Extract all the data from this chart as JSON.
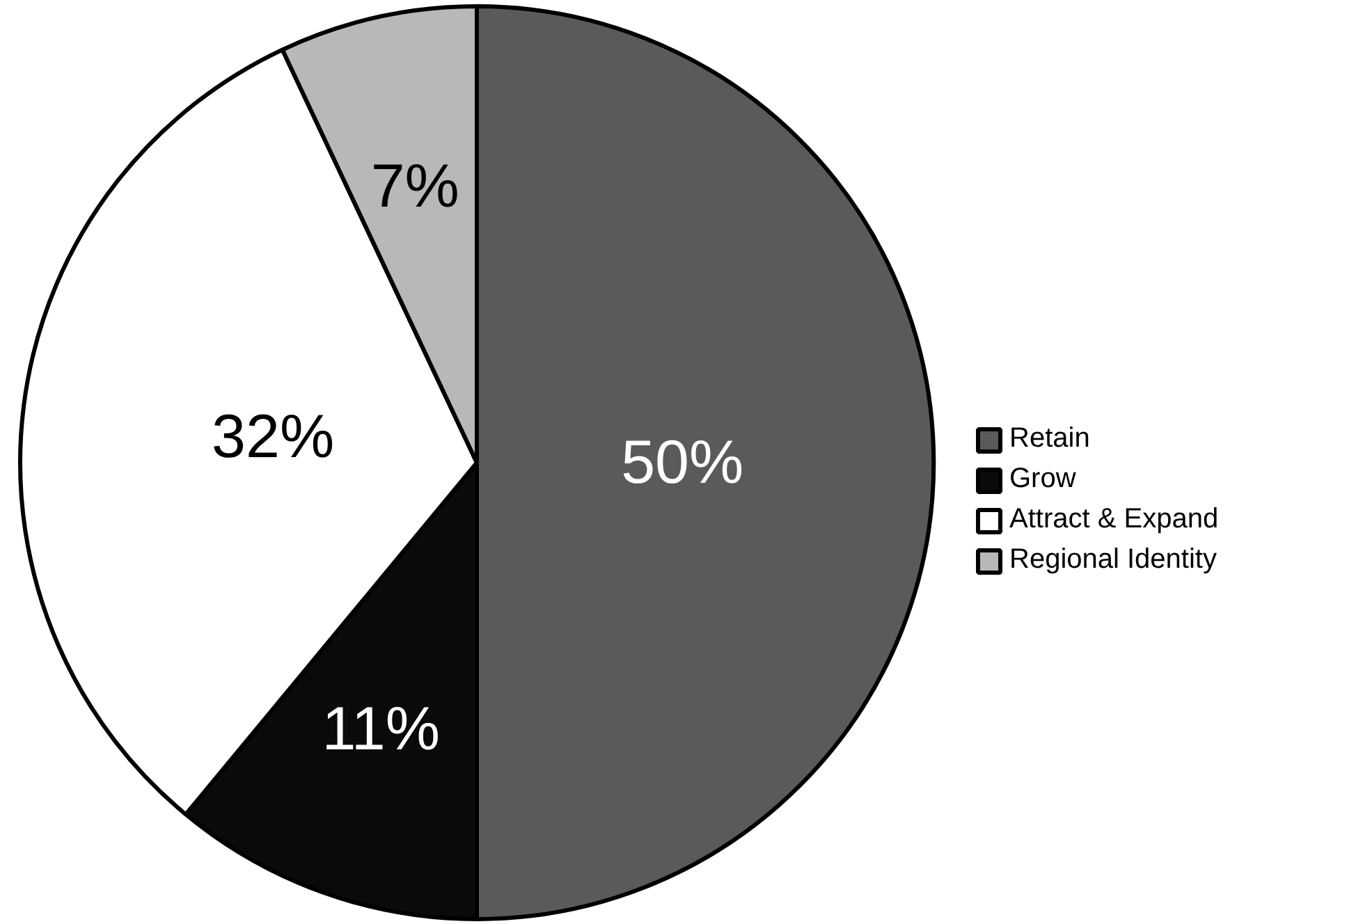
{
  "chart_data": {
    "type": "pie",
    "categories": [
      "Retain",
      "Grow",
      "Attract & Expand",
      "Regional Identity"
    ],
    "values": [
      50,
      11,
      32,
      7
    ],
    "colors": [
      "#5a5a5a",
      "#0a0a0a",
      "#ffffff",
      "#b8b8b8"
    ],
    "value_labels": [
      "50%",
      "11%",
      "32%",
      "7%"
    ],
    "legend": "right"
  }
}
